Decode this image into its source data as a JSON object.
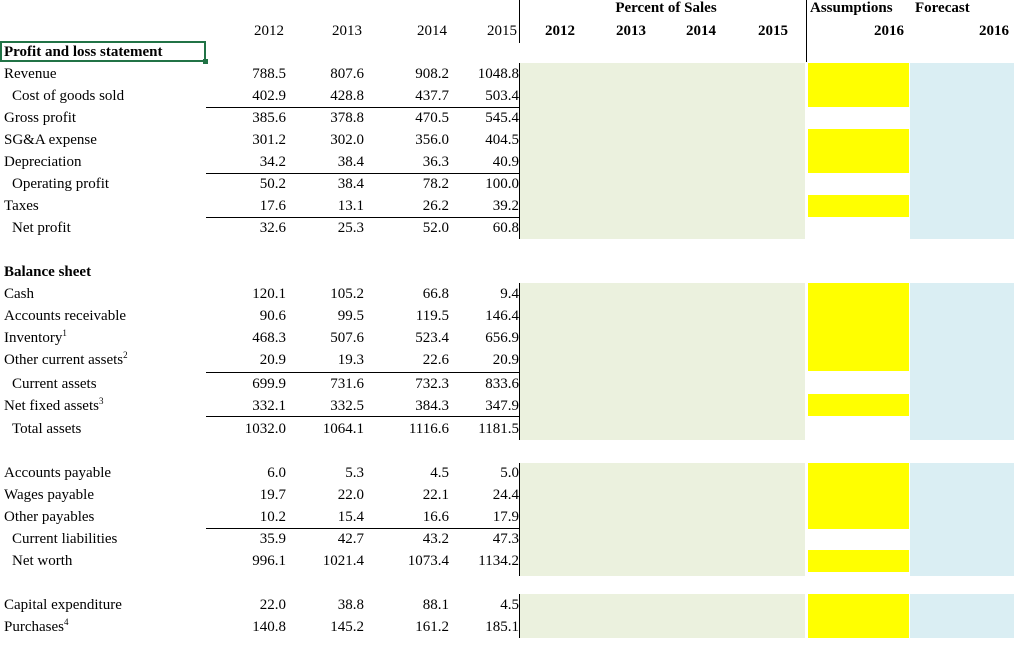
{
  "header": {
    "years": [
      "2012",
      "2013",
      "2014",
      "2015"
    ],
    "pct_title": "Percent of Sales",
    "pct_years": [
      "2012",
      "2013",
      "2014",
      "2015"
    ],
    "assumptions_title": "Assumptions",
    "assumptions_year": "2016",
    "forecast_title": "Forecast",
    "forecast_year": "2016"
  },
  "sections": {
    "pl_title": "Profit and loss statement",
    "bs_title": "Balance sheet"
  },
  "rows": [
    {
      "label": "Revenue",
      "values": [
        "788.5",
        "807.6",
        "908.2",
        "1048.8"
      ]
    },
    {
      "label": "Cost of goods sold",
      "values": [
        "402.9",
        "428.8",
        "437.7",
        "503.4"
      ]
    },
    {
      "label": "Gross profit",
      "values": [
        "385.6",
        "378.8",
        "470.5",
        "545.4"
      ]
    },
    {
      "label": "SG&A expense",
      "values": [
        "301.2",
        "302.0",
        "356.0",
        "404.5"
      ]
    },
    {
      "label": "Depreciation",
      "values": [
        "34.2",
        "38.4",
        "36.3",
        "40.9"
      ]
    },
    {
      "label": "Operating profit",
      "values": [
        "50.2",
        "38.4",
        "78.2",
        "100.0"
      ]
    },
    {
      "label": "Taxes",
      "values": [
        "17.6",
        "13.1",
        "26.2",
        "39.2"
      ]
    },
    {
      "label": "Net profit",
      "values": [
        "32.6",
        "25.3",
        "52.0",
        "60.8"
      ]
    },
    {
      "label": "Cash",
      "values": [
        "120.1",
        "105.2",
        "66.8",
        "9.4"
      ]
    },
    {
      "label": "Accounts receivable",
      "values": [
        "90.6",
        "99.5",
        "119.5",
        "146.4"
      ]
    },
    {
      "label": "Inventory",
      "sup": "1",
      "values": [
        "468.3",
        "507.6",
        "523.4",
        "656.9"
      ]
    },
    {
      "label": "Other current assets",
      "sup": "2",
      "values": [
        "20.9",
        "19.3",
        "22.6",
        "20.9"
      ]
    },
    {
      "label": "Current assets",
      "values": [
        "699.9",
        "731.6",
        "732.3",
        "833.6"
      ]
    },
    {
      "label": "Net fixed assets",
      "sup": "3",
      "values": [
        "332.1",
        "332.5",
        "384.3",
        "347.9"
      ]
    },
    {
      "label": "Total assets",
      "values": [
        "1032.0",
        "1064.1",
        "1116.6",
        "1181.5"
      ]
    },
    {
      "label": "Accounts payable",
      "values": [
        "6.0",
        "5.3",
        "4.5",
        "5.0"
      ]
    },
    {
      "label": "Wages payable",
      "values": [
        "19.7",
        "22.0",
        "22.1",
        "24.4"
      ]
    },
    {
      "label": "Other payables",
      "values": [
        "10.2",
        "15.4",
        "16.6",
        "17.9"
      ]
    },
    {
      "label": "Current liabilities",
      "values": [
        "35.9",
        "42.7",
        "43.2",
        "47.3"
      ]
    },
    {
      "label": "Net worth",
      "values": [
        "996.1",
        "1021.4",
        "1073.4",
        "1134.2"
      ]
    },
    {
      "label": "Capital expenditure",
      "values": [
        "22.0",
        "38.8",
        "88.1",
        "4.5"
      ]
    },
    {
      "label": "Purchases",
      "sup": "4",
      "values": [
        "140.8",
        "145.2",
        "161.2",
        "185.1"
      ]
    }
  ],
  "colors": {
    "pct_band": "#ebf1de",
    "assumption_band": "#ffff00",
    "forecast_band": "#daeef3"
  }
}
